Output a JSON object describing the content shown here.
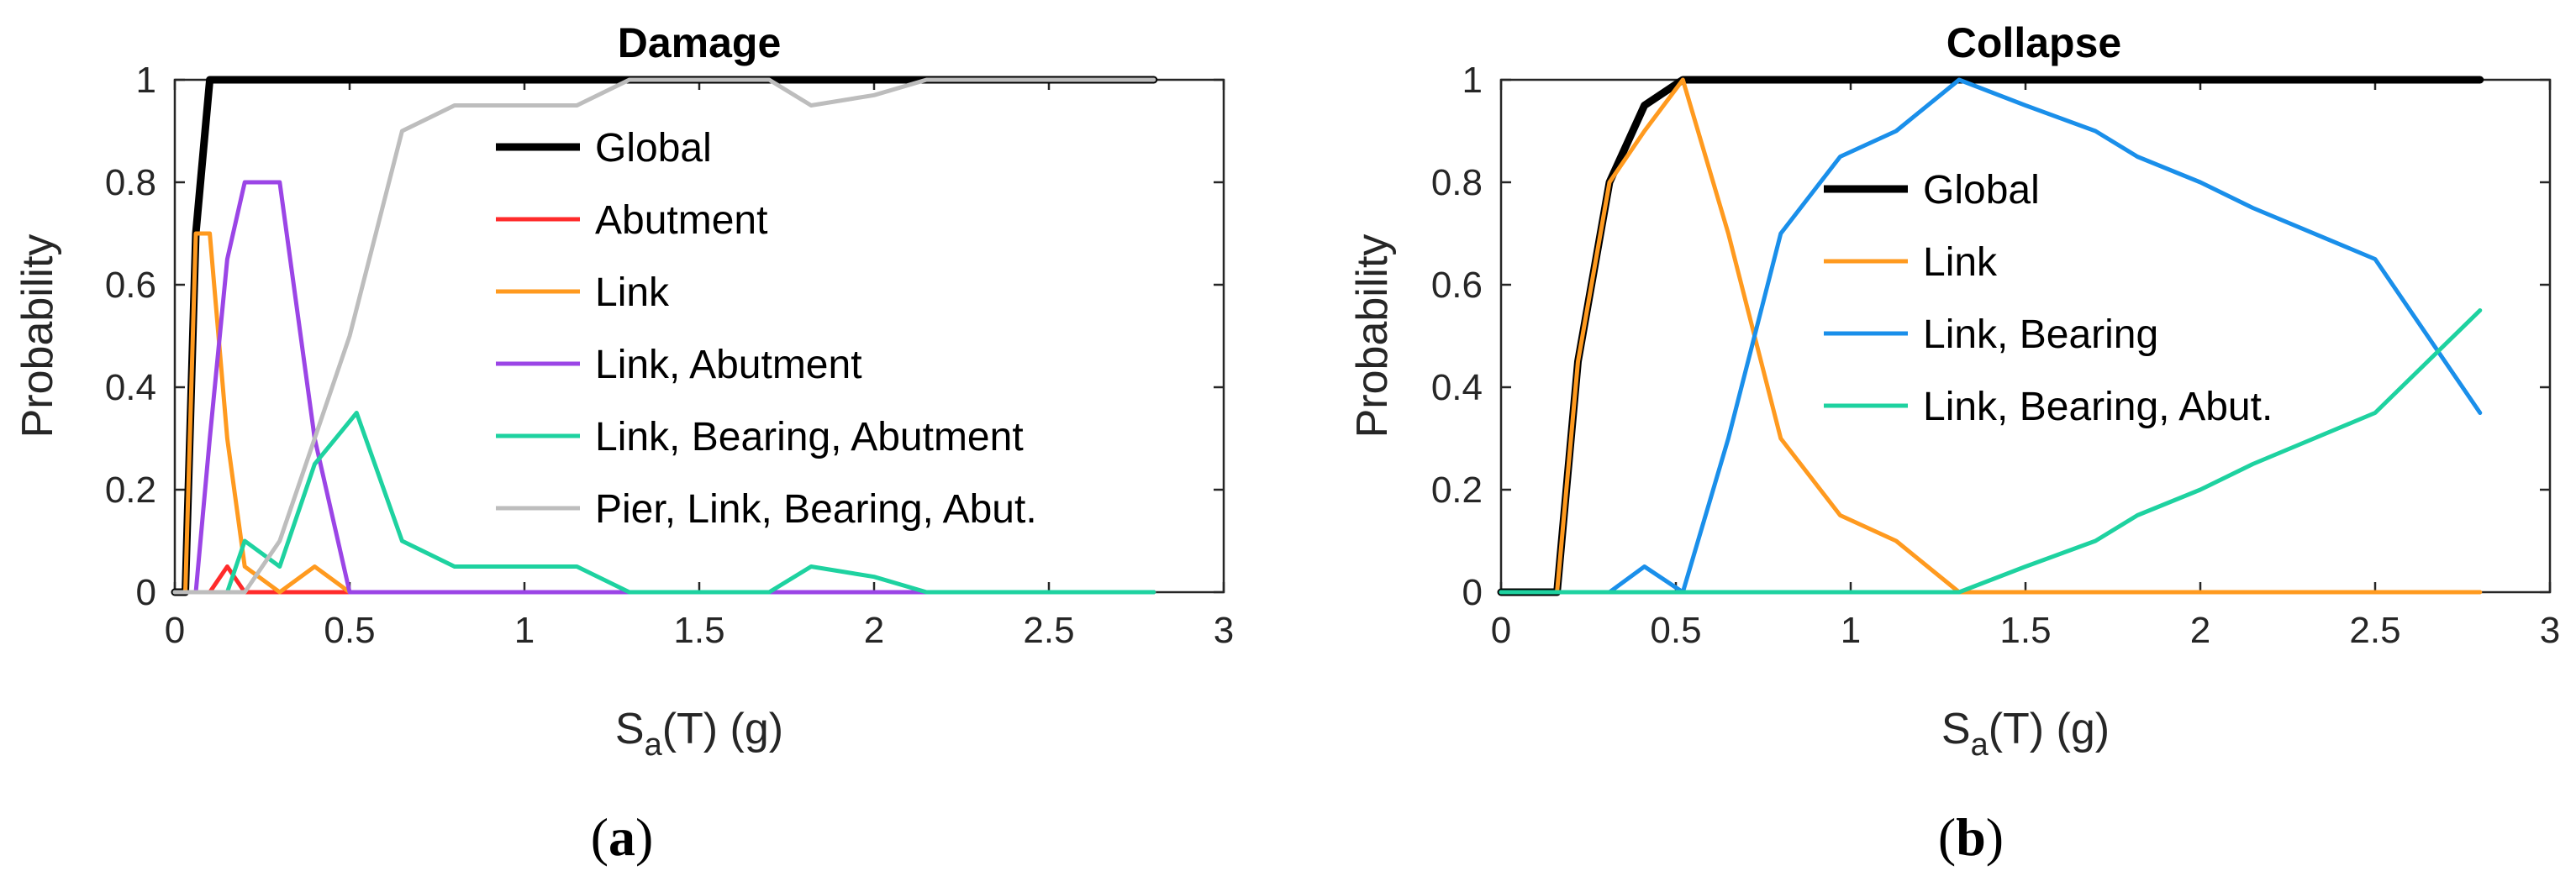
{
  "chart_data": [
    {
      "type": "line",
      "panel_label": "a",
      "title": "Damage",
      "xlabel_main": "S",
      "xlabel_sub": "a",
      "xlabel_rest": "(T)  (g)",
      "ylabel": "Probability",
      "xlim": [
        0,
        3
      ],
      "ylim": [
        0,
        1
      ],
      "xticks": [
        0,
        0.5,
        1,
        1.5,
        2,
        2.5,
        3
      ],
      "xtick_labels": [
        "0",
        "0.5",
        "1",
        "1.5",
        "2",
        "2.5",
        "3"
      ],
      "yticks": [
        0,
        0.2,
        0.4,
        0.6,
        0.8,
        1
      ],
      "ytick_labels": [
        "0",
        "0.2",
        "0.4",
        "0.6",
        "0.8",
        "1"
      ],
      "legend_position": "upper-right",
      "series": [
        {
          "name": "Global",
          "color": "#000000",
          "width": "bold",
          "x": [
            0,
            0.03,
            0.06,
            0.1,
            0.15,
            0.2,
            0.3,
            0.5,
            1.0,
            1.5,
            2.0,
            2.5,
            2.8
          ],
          "y": [
            0,
            0,
            0.7,
            1,
            1,
            1,
            1,
            1,
            1,
            1,
            1,
            1,
            1
          ]
        },
        {
          "name": "Abutment",
          "color": "#ff2b2b",
          "width": "normal",
          "x": [
            0,
            0.1,
            0.15,
            0.2,
            0.25,
            0.3,
            2.8
          ],
          "y": [
            0,
            0,
            0.05,
            0,
            0,
            0,
            0
          ]
        },
        {
          "name": "Link",
          "color": "#ff9a1f",
          "width": "normal",
          "x": [
            0,
            0.03,
            0.06,
            0.1,
            0.15,
            0.2,
            0.3,
            0.4,
            0.5,
            2.8
          ],
          "y": [
            0,
            0,
            0.7,
            0.7,
            0.3,
            0.05,
            0,
            0.05,
            0,
            0
          ]
        },
        {
          "name": "Link, Abutment",
          "color": "#9b45e6",
          "width": "normal",
          "x": [
            0,
            0.06,
            0.1,
            0.15,
            0.2,
            0.3,
            0.4,
            0.5,
            2.8
          ],
          "y": [
            0,
            0,
            0.3,
            0.65,
            0.8,
            0.8,
            0.3,
            0,
            0
          ]
        },
        {
          "name": "Link, Bearing, Abutment",
          "color": "#1ed2a0",
          "width": "normal",
          "x": [
            0,
            0.15,
            0.2,
            0.3,
            0.4,
            0.52,
            0.65,
            0.8,
            1.0,
            1.15,
            1.3,
            1.5,
            1.7,
            1.82,
            2.0,
            2.15,
            2.5,
            2.8
          ],
          "y": [
            0,
            0,
            0.1,
            0.05,
            0.25,
            0.35,
            0.1,
            0.05,
            0.05,
            0.05,
            0,
            0,
            0,
            0.05,
            0.03,
            0,
            0,
            0
          ]
        },
        {
          "name": "Pier, Link, Bearing, Abut.",
          "color": "#bdbdbd",
          "width": "normal",
          "x": [
            0,
            0.2,
            0.3,
            0.5,
            0.65,
            0.8,
            1.0,
            1.15,
            1.3,
            1.5,
            1.7,
            1.82,
            2.0,
            2.15,
            2.5,
            2.8
          ],
          "y": [
            0,
            0,
            0.1,
            0.5,
            0.9,
            0.95,
            0.95,
            0.95,
            1,
            1,
            1,
            0.95,
            0.97,
            1,
            1,
            1
          ]
        }
      ]
    },
    {
      "type": "line",
      "panel_label": "b",
      "title": "Collapse",
      "xlabel_main": "S",
      "xlabel_sub": "a",
      "xlabel_rest": "(T)  (g)",
      "ylabel": "Probability",
      "xlim": [
        0,
        3
      ],
      "ylim": [
        0,
        1
      ],
      "xticks": [
        0,
        0.5,
        1,
        1.5,
        2,
        2.5,
        3
      ],
      "xtick_labels": [
        "0",
        "0.5",
        "1",
        "1.5",
        "2",
        "2.5",
        "3"
      ],
      "yticks": [
        0,
        0.2,
        0.4,
        0.6,
        0.8,
        1
      ],
      "ytick_labels": [
        "0",
        "0.2",
        "0.4",
        "0.6",
        "0.8",
        "1"
      ],
      "legend_position": "upper-middle",
      "series": [
        {
          "name": "Global",
          "color": "#000000",
          "width": "bold",
          "x": [
            0,
            0.16,
            0.22,
            0.31,
            0.41,
            0.52,
            0.65,
            1.0,
            1.5,
            2.0,
            2.5,
            2.8
          ],
          "y": [
            0,
            0,
            0.45,
            0.8,
            0.95,
            1,
            1,
            1,
            1,
            1,
            1,
            1
          ]
        },
        {
          "name": "Link",
          "color": "#ff9a1f",
          "width": "normal",
          "x": [
            0,
            0.16,
            0.22,
            0.31,
            0.41,
            0.52,
            0.65,
            0.8,
            0.97,
            1.13,
            1.31,
            1.5,
            2.0,
            2.5,
            2.8
          ],
          "y": [
            0,
            0,
            0.45,
            0.8,
            0.9,
            1,
            0.7,
            0.3,
            0.15,
            0.1,
            0,
            0,
            0,
            0,
            0
          ]
        },
        {
          "name": "Link, Bearing",
          "color": "#1a8fea",
          "width": "normal",
          "x": [
            0,
            0.31,
            0.41,
            0.52,
            0.65,
            0.8,
            0.97,
            1.13,
            1.31,
            1.5,
            1.7,
            1.82,
            2.0,
            2.15,
            2.5,
            2.8
          ],
          "y": [
            0,
            0,
            0.05,
            0,
            0.3,
            0.7,
            0.85,
            0.9,
            1,
            0.95,
            0.9,
            0.85,
            0.8,
            0.75,
            0.65,
            0.35
          ]
        },
        {
          "name": "Link, Bearing, Abut.",
          "color": "#1ed2a0",
          "width": "normal",
          "x": [
            0,
            1.31,
            1.5,
            1.7,
            1.82,
            2.0,
            2.15,
            2.5,
            2.8
          ],
          "y": [
            0,
            0,
            0.05,
            0.1,
            0.15,
            0.2,
            0.25,
            0.35,
            0.55
          ]
        }
      ]
    }
  ]
}
